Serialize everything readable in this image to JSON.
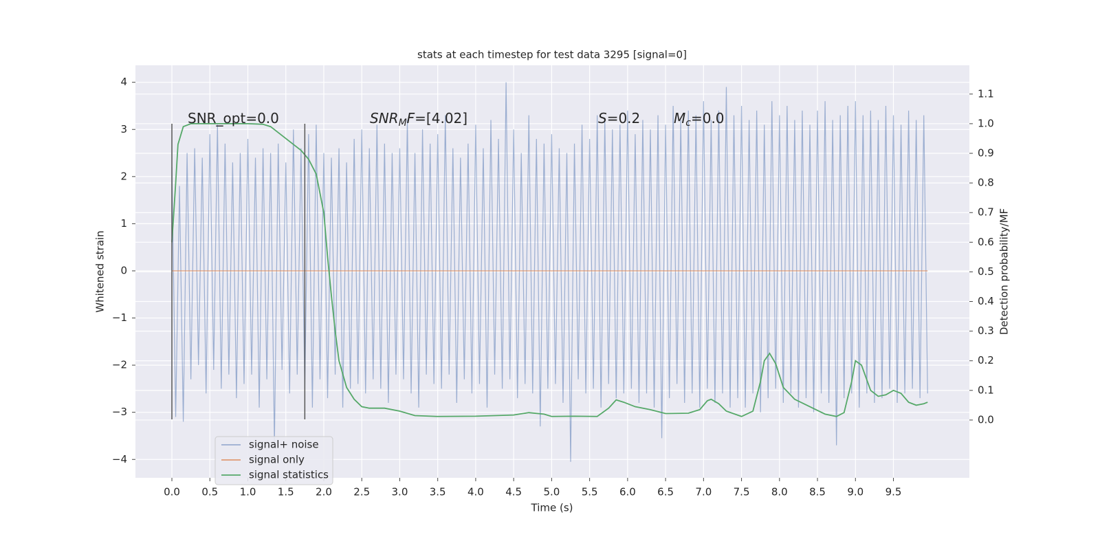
{
  "chart_data": {
    "type": "line",
    "title": "stats at each timestep for test data 3295 [signal=0]",
    "x_label": "Time (s)",
    "y_label": "Whitened strain",
    "y2_label": "Detection probability/MF",
    "xlim": [
      -0.48,
      10.5
    ],
    "ylim": [
      -4.39,
      4.36
    ],
    "y2lim": [
      -0.195,
      1.197
    ],
    "xticks": [
      {
        "value": 0,
        "label": "0.0"
      },
      0.5,
      {
        "value": 1,
        "label": "1.0"
      },
      1.5,
      {
        "value": 2,
        "label": "2.0"
      },
      2.5,
      {
        "value": 3,
        "label": "3.0"
      },
      3.5,
      {
        "value": 4,
        "label": "4.0"
      },
      4.5,
      {
        "value": 5,
        "label": "5.0"
      },
      5.5,
      {
        "value": 6,
        "label": "6.0"
      },
      6.5,
      {
        "value": 7,
        "label": "7.0"
      },
      7.5,
      {
        "value": 8,
        "label": "8.0"
      },
      8.5,
      {
        "value": 9,
        "label": "9.0"
      },
      9.5
    ],
    "yticks": [
      {
        "value": -4,
        "label": "−4"
      },
      {
        "value": -3,
        "label": "−3"
      },
      {
        "value": -2,
        "label": "−2"
      },
      {
        "value": -1,
        "label": "−1"
      },
      0,
      1,
      2,
      3,
      4
    ],
    "y2ticks": [
      {
        "value": 0,
        "label": "0.0"
      },
      0.1,
      0.2,
      0.3,
      0.4,
      0.5,
      0.6,
      0.7,
      0.8,
      0.9,
      {
        "value": 1,
        "label": "1.0"
      },
      1.1
    ],
    "grid": true,
    "legend": "lower left",
    "vlines": {
      "x": [
        0,
        1.75
      ],
      "ymin": -3.15,
      "ymax": 3.12,
      "color": "#555555"
    },
    "annotations": [
      [
        {
          "text": "SNR_opt=0.0",
          "style": "normal"
        }
      ],
      [
        {
          "text": "SNR",
          "style": "italic"
        },
        {
          "text": "M",
          "style": "sub"
        },
        {
          "text": "F",
          "style": "italic"
        },
        {
          "text": "=[4.02]",
          "style": "normal"
        }
      ],
      [
        {
          "text": "S",
          "style": "italic"
        },
        {
          "text": "=0.2",
          "style": "normal"
        }
      ],
      [
        {
          "text": "M",
          "style": "italic"
        },
        {
          "text": "c",
          "style": "sub"
        },
        {
          "text": "=0.0",
          "style": "normal"
        }
      ]
    ],
    "series": [
      {
        "name": "signal+ noise",
        "color": "#4c72b0",
        "opacity": 0.5,
        "x": [
          0,
          0.05,
          0.1,
          0.15,
          0.2,
          0.25,
          0.3,
          0.35,
          0.4,
          0.45,
          0.5,
          0.55,
          0.6,
          0.65,
          0.7,
          0.75,
          0.8,
          0.85,
          0.9,
          0.95,
          1,
          1.05,
          1.1,
          1.15,
          1.2,
          1.25,
          1.3,
          1.35,
          1.4,
          1.45,
          1.5,
          1.55,
          1.6,
          1.65,
          1.7,
          1.75,
          1.8,
          1.85,
          1.9,
          1.95,
          2,
          2.05,
          2.1,
          2.15,
          2.2,
          2.25,
          2.3,
          2.35,
          2.4,
          2.45,
          2.5,
          2.55,
          2.6,
          2.65,
          2.7,
          2.75,
          2.8,
          2.85,
          2.9,
          2.95,
          3,
          3.05,
          3.1,
          3.15,
          3.2,
          3.25,
          3.3,
          3.35,
          3.4,
          3.45,
          3.5,
          3.55,
          3.6,
          3.65,
          3.7,
          3.75,
          3.8,
          3.85,
          3.9,
          3.95,
          4,
          4.05,
          4.1,
          4.15,
          4.2,
          4.25,
          4.3,
          4.35,
          4.4,
          4.45,
          4.5,
          4.55,
          4.6,
          4.65,
          4.7,
          4.75,
          4.8,
          4.85,
          4.9,
          4.95,
          5,
          5.05,
          5.1,
          5.15,
          5.2,
          5.25,
          5.3,
          5.35,
          5.4,
          5.45,
          5.5,
          5.55,
          5.6,
          5.65,
          5.7,
          5.75,
          5.8,
          5.85,
          5.9,
          5.95,
          6,
          6.05,
          6.1,
          6.15,
          6.2,
          6.25,
          6.3,
          6.35,
          6.4,
          6.45,
          6.5,
          6.55,
          6.6,
          6.65,
          6.7,
          6.75,
          6.8,
          6.85,
          6.9,
          6.95,
          7,
          7.05,
          7.1,
          7.15,
          7.2,
          7.25,
          7.3,
          7.35,
          7.4,
          7.45,
          7.5,
          7.55,
          7.6,
          7.65,
          7.7,
          7.75,
          7.8,
          7.85,
          7.9,
          7.95,
          8,
          8.05,
          8.1,
          8.15,
          8.2,
          8.25,
          8.3,
          8.35,
          8.4,
          8.45,
          8.5,
          8.55,
          8.6,
          8.65,
          8.7,
          8.75,
          8.8,
          8.85,
          8.9,
          8.95,
          9,
          9.05,
          9.1,
          9.15,
          9.2,
          9.25,
          9.3,
          9.35,
          9.4,
          9.45,
          9.5,
          9.55,
          9.6,
          9.65,
          9.7,
          9.75,
          9.8,
          9.85,
          9.9,
          9.95
        ],
        "values": [
          2.2,
          -3.1,
          1.8,
          -3.2,
          2.5,
          -2.3,
          2.6,
          -2.0,
          2.4,
          -2.6,
          2.9,
          -2.1,
          3.1,
          -2.5,
          2.7,
          -2.2,
          2.3,
          -2.7,
          2.5,
          -2.4,
          2.8,
          -2.2,
          2.4,
          -2.9,
          2.6,
          -2.3,
          2.5,
          -3.7,
          2.7,
          -2.1,
          2.3,
          -2.6,
          3.0,
          -2.2,
          2.6,
          -2.5,
          2.9,
          -2.9,
          3.1,
          -2.3,
          2.5,
          -2.7,
          2.4,
          -2.2,
          2.6,
          -2.9,
          2.3,
          -2.5,
          2.8,
          -2.4,
          3.0,
          -2.6,
          2.6,
          -2.3,
          3.1,
          -2.5,
          2.7,
          -2.8,
          2.5,
          -2.2,
          2.6,
          -2.3,
          3.2,
          -2.6,
          2.5,
          -2.9,
          3.0,
          -2.2,
          2.7,
          -2.4,
          2.9,
          -2.5,
          3.3,
          -2.2,
          2.6,
          -2.8,
          2.4,
          -2.3,
          2.7,
          -2.6,
          3.1,
          -2.4,
          2.6,
          -2.9,
          3.2,
          -2.2,
          2.8,
          -2.5,
          4.0,
          -2.3,
          3.0,
          -2.7,
          2.5,
          -2.4,
          3.3,
          -2.6,
          2.8,
          -3.3,
          2.7,
          -2.5,
          2.9,
          -2.4,
          2.6,
          -2.8,
          2.5,
          -4.05,
          2.7,
          -2.3,
          3.1,
          -2.6,
          2.8,
          -2.5,
          3.3,
          -2.9,
          3.2,
          -2.4,
          3.0,
          -2.7,
          3.1,
          -2.6,
          3.4,
          -2.5,
          2.9,
          -2.8,
          3.2,
          -2.6,
          3.0,
          -2.9,
          3.3,
          -3.55,
          3.1,
          -2.7,
          3.5,
          -2.4,
          3.2,
          -2.8,
          3.4,
          -2.6,
          3.3,
          -2.9,
          3.6,
          -2.5,
          3.2,
          -2.8,
          3.4,
          -2.6,
          3.9,
          -2.9,
          3.3,
          -2.7,
          3.5,
          -2.9,
          3.2,
          -2.6,
          3.4,
          -3.0,
          3.1,
          -2.7,
          3.6,
          -2.5,
          3.3,
          -2.8,
          3.5,
          -2.6,
          3.2,
          -2.9,
          3.4,
          -2.7,
          3.1,
          -3.0,
          3.4,
          -2.6,
          3.6,
          -2.8,
          3.2,
          -3.7,
          3.3,
          -2.7,
          3.5,
          -2.6,
          3.6,
          -2.9,
          3.3,
          -2.6,
          3.4,
          -2.8,
          3.2,
          -2.7,
          3.5,
          -2.5,
          3.3,
          -2.8,
          3.1,
          -2.6,
          3.4,
          -2.5,
          3.2,
          -2.7,
          3.3,
          -2.6
        ]
      },
      {
        "name": "signal only",
        "color": "#dd8452",
        "opacity": 0.8,
        "x": [
          0,
          9.95
        ],
        "values": [
          0,
          0
        ]
      },
      {
        "name": "signal statistics",
        "color": "#55a868",
        "opacity": 1,
        "axis": "y2",
        "x": [
          0,
          0.05,
          0.08,
          0.15,
          0.25,
          0.5,
          1.0,
          1.2,
          1.3,
          1.4,
          1.5,
          1.6,
          1.7,
          1.8,
          1.9,
          2.0,
          2.05,
          2.1,
          2.15,
          2.2,
          2.3,
          2.4,
          2.5,
          2.6,
          2.8,
          3.0,
          3.2,
          3.5,
          4.0,
          4.5,
          4.7,
          4.9,
          5.0,
          5.3,
          5.6,
          5.75,
          5.85,
          5.95,
          6.1,
          6.3,
          6.5,
          6.8,
          6.95,
          7.05,
          7.1,
          7.2,
          7.3,
          7.5,
          7.65,
          7.75,
          7.8,
          7.87,
          7.95,
          8.05,
          8.2,
          8.4,
          8.6,
          8.75,
          8.85,
          8.95,
          9.0,
          9.08,
          9.2,
          9.3,
          9.4,
          9.5,
          9.6,
          9.7,
          9.8,
          9.9,
          9.95
        ],
        "values": [
          0.6,
          0.8,
          0.93,
          0.99,
          1.0,
          1.0,
          1.0,
          0.998,
          0.99,
          0.97,
          0.95,
          0.93,
          0.91,
          0.88,
          0.83,
          0.7,
          0.55,
          0.42,
          0.3,
          0.2,
          0.11,
          0.07,
          0.045,
          0.04,
          0.04,
          0.03,
          0.015,
          0.012,
          0.013,
          0.017,
          0.025,
          0.02,
          0.012,
          0.013,
          0.012,
          0.04,
          0.068,
          0.06,
          0.045,
          0.035,
          0.022,
          0.023,
          0.035,
          0.065,
          0.07,
          0.055,
          0.03,
          0.012,
          0.03,
          0.13,
          0.2,
          0.225,
          0.19,
          0.11,
          0.07,
          0.045,
          0.02,
          0.012,
          0.025,
          0.13,
          0.2,
          0.185,
          0.1,
          0.08,
          0.085,
          0.1,
          0.09,
          0.06,
          0.05,
          0.055,
          0.06
        ]
      }
    ]
  }
}
